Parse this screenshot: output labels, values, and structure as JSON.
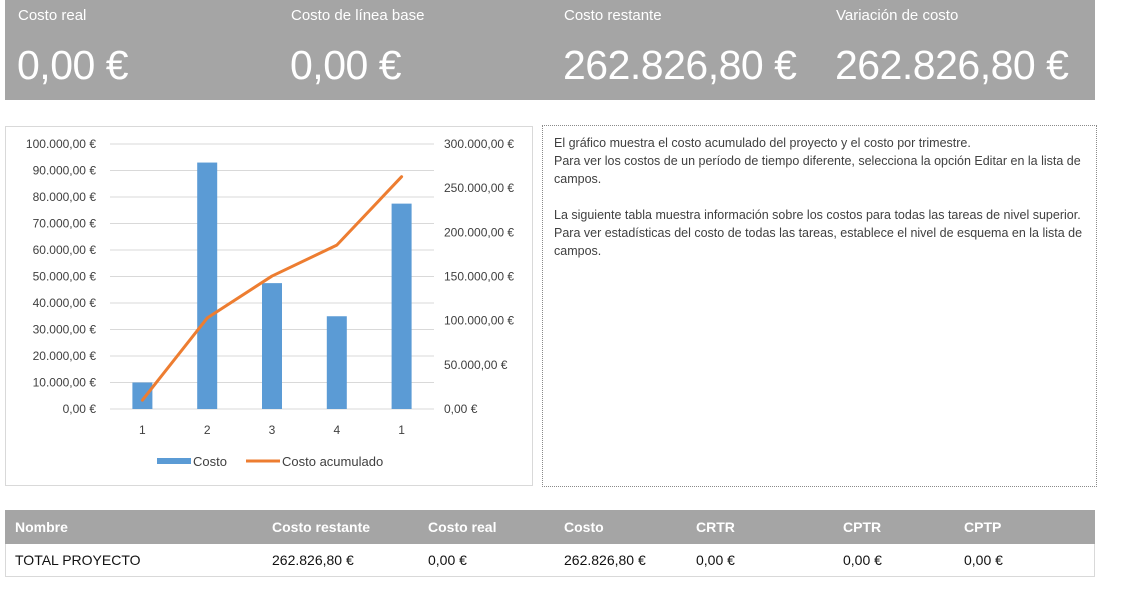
{
  "kpis": [
    {
      "label": "Costo real",
      "value": "0,00 €"
    },
    {
      "label": "Costo de línea base",
      "value": "0,00 €"
    },
    {
      "label": "Costo restante",
      "value": "262.826,80 €"
    },
    {
      "label": "Variación de costo",
      "value": "262.826,80 €"
    }
  ],
  "chart_data": {
    "type": "bar",
    "categories": [
      "1",
      "2",
      "3",
      "4",
      "1"
    ],
    "series": [
      {
        "name": "Costo",
        "type": "bar",
        "axis": "left",
        "color": "#5b9bd5",
        "values": [
          10000,
          93000,
          47500,
          35000,
          77500
        ]
      },
      {
        "name": "Costo acumulado",
        "type": "line",
        "axis": "right",
        "color": "#ed7d31",
        "values": [
          10000,
          103000,
          150500,
          185500,
          263000
        ]
      }
    ],
    "y_left": {
      "min": 0,
      "max": 100000,
      "step": 10000,
      "tick_labels": [
        "0,00 €",
        "10.000,00 €",
        "20.000,00 €",
        "30.000,00 €",
        "40.000,00 €",
        "50.000,00 €",
        "60.000,00 €",
        "70.000,00 €",
        "80.000,00 €",
        "90.000,00 €",
        "100.000,00 €"
      ]
    },
    "y_right": {
      "min": 0,
      "max": 300000,
      "step": 50000,
      "tick_labels": [
        "0,00 €",
        "50.000,00 €",
        "100.000,00 €",
        "150.000,00 €",
        "200.000,00 €",
        "250.000,00 €",
        "300.000,00 €"
      ]
    },
    "grid": true,
    "legend_position": "bottom"
  },
  "info": {
    "lines": [
      "El gráfico muestra el costo acumulado del proyecto y el costo por trimestre.",
      "Para ver los costos de un período de tiempo diferente, selecciona la opción Editar en la lista de campos.",
      "",
      "La siguiente tabla muestra información sobre los costos para todas las tareas de nivel superior.",
      "Para ver estadísticas del costo de todas las tareas, establece el nivel de esquema en la lista de campos."
    ]
  },
  "table": {
    "headers": [
      "Nombre",
      "Costo restante",
      "Costo real",
      "Costo",
      "CRTR",
      "CPTR",
      "CPTP"
    ],
    "rows": [
      [
        "TOTAL PROYECTO",
        "262.826,80 €",
        "0,00 €",
        "262.826,80 €",
        "0,00 €",
        "0,00 €",
        "0,00 €"
      ]
    ]
  },
  "colors": {
    "banner": "#a5a5a5",
    "bar": "#5b9bd5",
    "line": "#ed7d31"
  }
}
